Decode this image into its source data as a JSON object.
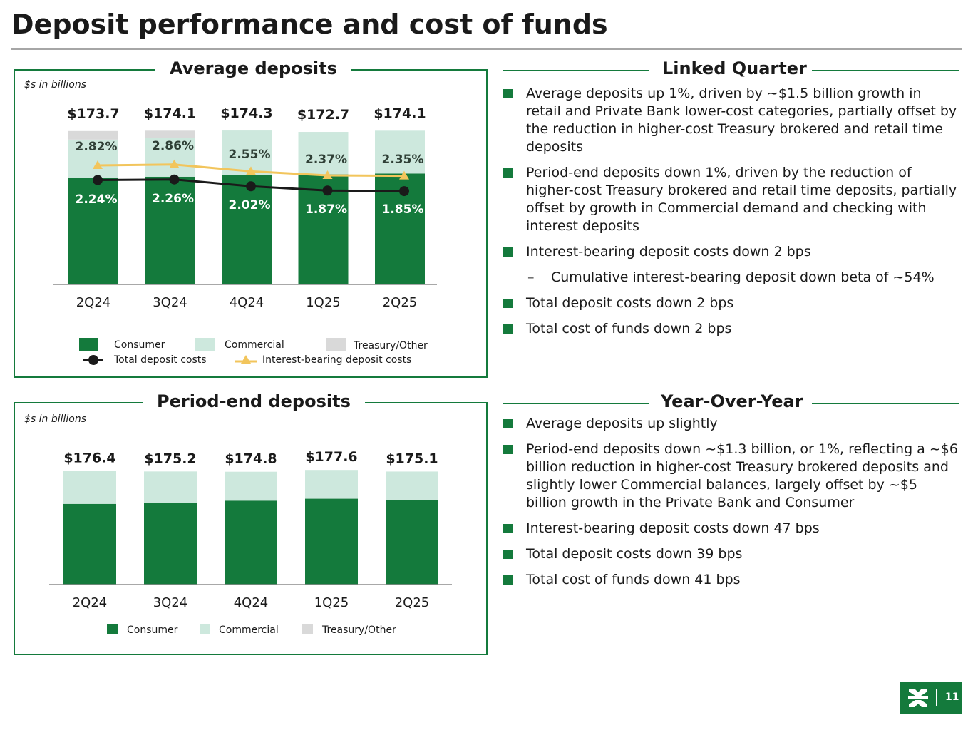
{
  "page": {
    "title": "Deposit performance and cost of funds",
    "page_number": "11"
  },
  "colors": {
    "consumer": "#147a3c",
    "commercial": "#cde8dd",
    "treasury": "#d9d9d9",
    "total_cost_line": "#1a1a1a",
    "ib_cost_line": "#f2c55c"
  },
  "legend_labels": {
    "consumer": "Consumer",
    "commercial": "Commercial",
    "treasury": "Treasury/Other",
    "total_cost": "Total deposit costs",
    "ib_cost": "Interest-bearing deposit costs"
  },
  "chart_data": [
    {
      "type": "bar",
      "title": "Average deposits",
      "units_note": "$s in billions",
      "categories": [
        "2Q24",
        "3Q24",
        "4Q24",
        "1Q25",
        "2Q25"
      ],
      "totals_labels": [
        "$173.7",
        "$174.1",
        "$174.3",
        "$172.7",
        "$174.1"
      ],
      "series": [
        {
          "name": "Consumer",
          "values": [
            121.0,
            122.0,
            123.6,
            124.8,
            125.6
          ]
        },
        {
          "name": "Commercial",
          "values": [
            43.0,
            44.0,
            50.7,
            47.9,
            48.5
          ]
        },
        {
          "name": "Treasury/Other",
          "values": [
            9.7,
            8.1,
            0.0,
            0.0,
            0.0
          ]
        },
        {
          "name": "Total deposit costs",
          "type": "line",
          "values": [
            2.24,
            2.26,
            2.02,
            1.87,
            1.85
          ],
          "labels": [
            "2.24%",
            "2.26%",
            "2.02%",
            "1.87%",
            "1.85%"
          ]
        },
        {
          "name": "Interest-bearing deposit costs",
          "type": "line",
          "values": [
            2.82,
            2.86,
            2.55,
            2.37,
            2.35
          ],
          "labels": [
            "2.82%",
            "2.86%",
            "2.55%",
            "2.37%",
            "2.35%"
          ]
        }
      ],
      "ylim": [
        0,
        180
      ]
    },
    {
      "type": "bar",
      "title": "Period-end deposits",
      "units_note": "$s in billions",
      "categories": [
        "2Q24",
        "3Q24",
        "4Q24",
        "1Q25",
        "2Q25"
      ],
      "totals_labels": [
        "$176.4",
        "$175.2",
        "$174.8",
        "$177.6",
        "$175.1"
      ],
      "series": [
        {
          "name": "Consumer",
          "values": [
            125.0,
            126.5,
            130.0,
            133.0,
            131.5
          ]
        },
        {
          "name": "Commercial",
          "values": [
            51.4,
            48.7,
            44.8,
            44.6,
            43.6
          ]
        },
        {
          "name": "Treasury/Other",
          "values": [
            0.0,
            0.0,
            0.0,
            0.0,
            0.0
          ]
        }
      ],
      "ylim": [
        0,
        180
      ]
    }
  ],
  "linked_quarter": {
    "heading": "Linked Quarter",
    "bullets": [
      "Average deposits up 1%, driven by ~$1.5 billion growth in retail and Private Bank lower-cost categories, partially offset by the reduction in higher-cost Treasury brokered and retail time deposits",
      "Period-end deposits down 1%, driven by the reduction of higher-cost Treasury brokered and retail time deposits, partially offset by growth in Commercial demand and checking with interest deposits",
      "Interest-bearing deposit costs down 2 bps"
    ],
    "sub_bullet": "Cumulative interest-bearing deposit down beta of ~54%",
    "bullets_after": [
      "Total deposit costs down 2 bps",
      "Total cost of funds down 2 bps"
    ]
  },
  "year_over_year": {
    "heading": "Year-Over-Year",
    "bullets": [
      "Average deposits up slightly",
      "Period-end deposits down ~$1.3 billion, or 1%, reflecting a ~$6 billion reduction in higher-cost Treasury brokered deposits and slightly lower Commercial balances, largely offset by ~$5 billion growth in the Private Bank and Consumer",
      "Interest-bearing deposit costs down 47 bps",
      "Total deposit costs down 39 bps",
      "Total cost of funds down 41 bps"
    ]
  }
}
